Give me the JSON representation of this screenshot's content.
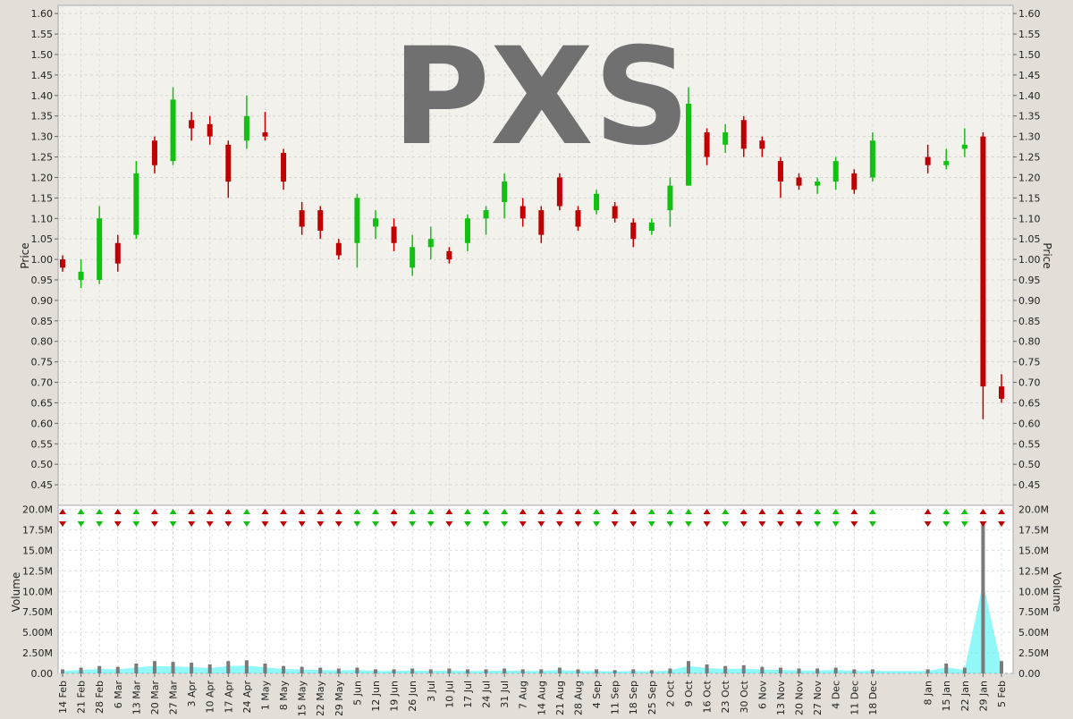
{
  "chart_data": [
    {
      "type": "candlestick",
      "title": "PXS",
      "ylabel": "Price",
      "ylim": [
        0.4,
        1.62
      ],
      "yticks": [
        "0.45",
        "0.50",
        "0.55",
        "0.60",
        "0.65",
        "0.70",
        "0.75",
        "0.80",
        "0.85",
        "0.90",
        "0.95",
        "1.00",
        "1.05",
        "1.10",
        "1.15",
        "1.20",
        "1.25",
        "1.30",
        "1.35",
        "1.40",
        "1.45",
        "1.50",
        "1.55",
        "1.60"
      ],
      "grid": true,
      "colors": {
        "up": "#11c011",
        "down": "#c00000",
        "flat": "#000000"
      },
      "xticks": [
        "14 Feb",
        "21 Feb",
        "28 Feb",
        "6 Mar",
        "13 Mar",
        "20 Mar",
        "27 Mar",
        "3 Apr",
        "10 Apr",
        "17 Apr",
        "24 Apr",
        "1 May",
        "8 May",
        "15 May",
        "22 May",
        "29 May",
        "5 Jun",
        "12 Jun",
        "19 Jun",
        "26 Jun",
        "3 Jul",
        "10 Jul",
        "17 Jul",
        "24 Jul",
        "31 Jul",
        "7 Aug",
        "14 Aug",
        "21 Aug",
        "28 Aug",
        "4 Sep",
        "11 Sep",
        "18 Sep",
        "25 Sep",
        "2 Oct",
        "9 Oct",
        "16 Oct",
        "23 Oct",
        "30 Oct",
        "6 Nov",
        "13 Nov",
        "20 Nov",
        "27 Nov",
        "4 Dec",
        "11 Dec",
        "18 Dec",
        "8 Jan",
        "15 Jan",
        "22 Jan",
        "29 Jan",
        "5 Feb"
      ],
      "series": [
        {
          "x": "14 Feb",
          "open": 1.0,
          "high": 1.01,
          "low": 0.97,
          "close": 0.98
        },
        {
          "x": "21 Feb",
          "open": 0.95,
          "high": 1.0,
          "low": 0.93,
          "close": 0.97
        },
        {
          "x": "28 Feb",
          "open": 0.95,
          "high": 1.13,
          "low": 0.94,
          "close": 1.1
        },
        {
          "x": "6 Mar",
          "open": 1.04,
          "high": 1.06,
          "low": 0.97,
          "close": 0.99
        },
        {
          "x": "13 Mar",
          "open": 1.06,
          "high": 1.24,
          "low": 1.05,
          "close": 1.21
        },
        {
          "x": "20 Mar",
          "open": 1.29,
          "high": 1.3,
          "low": 1.21,
          "close": 1.23
        },
        {
          "x": "27 Mar",
          "open": 1.24,
          "high": 1.42,
          "low": 1.23,
          "close": 1.39
        },
        {
          "x": "3 Apr",
          "open": 1.34,
          "high": 1.36,
          "low": 1.29,
          "close": 1.32
        },
        {
          "x": "10 Apr",
          "open": 1.33,
          "high": 1.35,
          "low": 1.28,
          "close": 1.3
        },
        {
          "x": "17 Apr",
          "open": 1.28,
          "high": 1.29,
          "low": 1.15,
          "close": 1.19
        },
        {
          "x": "24 Apr",
          "open": 1.29,
          "high": 1.4,
          "low": 1.27,
          "close": 1.35
        },
        {
          "x": "1 May",
          "open": 1.31,
          "high": 1.36,
          "low": 1.29,
          "close": 1.3
        },
        {
          "x": "8 May",
          "open": 1.26,
          "high": 1.27,
          "low": 1.17,
          "close": 1.19
        },
        {
          "x": "15 May",
          "open": 1.12,
          "high": 1.14,
          "low": 1.06,
          "close": 1.08
        },
        {
          "x": "22 May",
          "open": 1.12,
          "high": 1.13,
          "low": 1.05,
          "close": 1.07
        },
        {
          "x": "29 May",
          "open": 1.04,
          "high": 1.05,
          "low": 1.0,
          "close": 1.01
        },
        {
          "x": "5 Jun",
          "open": 1.04,
          "high": 1.16,
          "low": 0.98,
          "close": 1.15
        },
        {
          "x": "12 Jun",
          "open": 1.08,
          "high": 1.12,
          "low": 1.05,
          "close": 1.1
        },
        {
          "x": "19 Jun",
          "open": 1.08,
          "high": 1.1,
          "low": 1.02,
          "close": 1.04
        },
        {
          "x": "26 Jun",
          "open": 0.98,
          "high": 1.06,
          "low": 0.96,
          "close": 1.03
        },
        {
          "x": "3 Jul",
          "open": 1.03,
          "high": 1.08,
          "low": 1.0,
          "close": 1.05
        },
        {
          "x": "10 Jul",
          "open": 1.02,
          "high": 1.03,
          "low": 0.99,
          "close": 1.0
        },
        {
          "x": "17 Jul",
          "open": 1.04,
          "high": 1.11,
          "low": 1.02,
          "close": 1.1
        },
        {
          "x": "24 Jul",
          "open": 1.1,
          "high": 1.13,
          "low": 1.06,
          "close": 1.12
        },
        {
          "x": "31 Jul",
          "open": 1.14,
          "high": 1.21,
          "low": 1.1,
          "close": 1.19
        },
        {
          "x": "7 Aug",
          "open": 1.13,
          "high": 1.15,
          "low": 1.08,
          "close": 1.1
        },
        {
          "x": "14 Aug",
          "open": 1.12,
          "high": 1.13,
          "low": 1.04,
          "close": 1.06
        },
        {
          "x": "21 Aug",
          "open": 1.2,
          "high": 1.21,
          "low": 1.12,
          "close": 1.13
        },
        {
          "x": "28 Aug",
          "open": 1.12,
          "high": 1.13,
          "low": 1.07,
          "close": 1.08
        },
        {
          "x": "4 Sep",
          "open": 1.12,
          "high": 1.17,
          "low": 1.11,
          "close": 1.16
        },
        {
          "x": "11 Sep",
          "open": 1.13,
          "high": 1.14,
          "low": 1.09,
          "close": 1.1
        },
        {
          "x": "18 Sep",
          "open": 1.09,
          "high": 1.1,
          "low": 1.03,
          "close": 1.05
        },
        {
          "x": "25 Sep",
          "open": 1.07,
          "high": 1.1,
          "low": 1.06,
          "close": 1.09
        },
        {
          "x": "2 Oct",
          "open": 1.12,
          "high": 1.2,
          "low": 1.08,
          "close": 1.18
        },
        {
          "x": "9 Oct",
          "open": 1.18,
          "high": 1.42,
          "low": 1.18,
          "close": 1.38
        },
        {
          "x": "16 Oct",
          "open": 1.31,
          "high": 1.32,
          "low": 1.23,
          "close": 1.25
        },
        {
          "x": "23 Oct",
          "open": 1.28,
          "high": 1.33,
          "low": 1.26,
          "close": 1.31
        },
        {
          "x": "30 Oct",
          "open": 1.34,
          "high": 1.35,
          "low": 1.25,
          "close": 1.27
        },
        {
          "x": "6 Nov",
          "open": 1.29,
          "high": 1.3,
          "low": 1.25,
          "close": 1.27
        },
        {
          "x": "13 Nov",
          "open": 1.24,
          "high": 1.25,
          "low": 1.15,
          "close": 1.19
        },
        {
          "x": "20 Nov",
          "open": 1.2,
          "high": 1.21,
          "low": 1.17,
          "close": 1.18
        },
        {
          "x": "27 Nov",
          "open": 1.18,
          "high": 1.2,
          "low": 1.16,
          "close": 1.19
        },
        {
          "x": "4 Dec",
          "open": 1.19,
          "high": 1.25,
          "low": 1.17,
          "close": 1.24
        },
        {
          "x": "11 Dec",
          "open": 1.21,
          "high": 1.22,
          "low": 1.16,
          "close": 1.17
        },
        {
          "x": "18 Dec",
          "open": 1.2,
          "high": 1.31,
          "low": 1.19,
          "close": 1.29
        },
        {
          "x": "8 Jan",
          "open": 1.25,
          "high": 1.28,
          "low": 1.21,
          "close": 1.23
        },
        {
          "x": "15 Jan",
          "open": 1.23,
          "high": 1.27,
          "low": 1.22,
          "close": 1.24
        },
        {
          "x": "22 Jan",
          "open": 1.27,
          "high": 1.32,
          "low": 1.25,
          "close": 1.28
        },
        {
          "x": "29 Jan",
          "open": 1.3,
          "high": 1.31,
          "low": 0.61,
          "close": 0.69
        },
        {
          "x": "5 Feb",
          "open": 0.69,
          "high": 0.72,
          "low": 0.65,
          "close": 0.66
        }
      ]
    },
    {
      "type": "bar",
      "ylabel": "Volume",
      "ylim": [
        0,
        20500000
      ],
      "yticks": [
        "0.00",
        "2.50M",
        "5.00M",
        "7.50M",
        "10.0M",
        "12.5M",
        "15.0M",
        "17.5M",
        "20.0M"
      ],
      "colors": {
        "volume_bar": "#7a7a7a",
        "average_band": "#38f0f0",
        "average_band_2": "#f0a8a8"
      },
      "grid": true,
      "series": [
        {
          "x": "14 Feb",
          "value": 500000
        },
        {
          "x": "21 Feb",
          "value": 700000
        },
        {
          "x": "28 Feb",
          "value": 900000
        },
        {
          "x": "6 Mar",
          "value": 800000
        },
        {
          "x": "13 Mar",
          "value": 1200000
        },
        {
          "x": "20 Mar",
          "value": 1500000
        },
        {
          "x": "27 Mar",
          "value": 1400000
        },
        {
          "x": "3 Apr",
          "value": 1300000
        },
        {
          "x": "10 Apr",
          "value": 1100000
        },
        {
          "x": "17 Apr",
          "value": 1500000
        },
        {
          "x": "24 Apr",
          "value": 1600000
        },
        {
          "x": "1 May",
          "value": 1200000
        },
        {
          "x": "8 May",
          "value": 900000
        },
        {
          "x": "15 May",
          "value": 800000
        },
        {
          "x": "22 May",
          "value": 700000
        },
        {
          "x": "29 May",
          "value": 600000
        },
        {
          "x": "5 Jun",
          "value": 700000
        },
        {
          "x": "12 Jun",
          "value": 500000
        },
        {
          "x": "19 Jun",
          "value": 500000
        },
        {
          "x": "26 Jun",
          "value": 600000
        },
        {
          "x": "3 Jul",
          "value": 500000
        },
        {
          "x": "10 Jul",
          "value": 600000
        },
        {
          "x": "17 Jul",
          "value": 500000
        },
        {
          "x": "24 Jul",
          "value": 500000
        },
        {
          "x": "31 Jul",
          "value": 600000
        },
        {
          "x": "7 Aug",
          "value": 500000
        },
        {
          "x": "14 Aug",
          "value": 500000
        },
        {
          "x": "21 Aug",
          "value": 700000
        },
        {
          "x": "28 Aug",
          "value": 500000
        },
        {
          "x": "4 Sep",
          "value": 500000
        },
        {
          "x": "11 Sep",
          "value": 400000
        },
        {
          "x": "18 Sep",
          "value": 500000
        },
        {
          "x": "25 Sep",
          "value": 400000
        },
        {
          "x": "2 Oct",
          "value": 600000
        },
        {
          "x": "9 Oct",
          "value": 1500000
        },
        {
          "x": "16 Oct",
          "value": 1100000
        },
        {
          "x": "23 Oct",
          "value": 900000
        },
        {
          "x": "30 Oct",
          "value": 1000000
        },
        {
          "x": "6 Nov",
          "value": 800000
        },
        {
          "x": "13 Nov",
          "value": 700000
        },
        {
          "x": "20 Nov",
          "value": 600000
        },
        {
          "x": "27 Nov",
          "value": 600000
        },
        {
          "x": "4 Dec",
          "value": 700000
        },
        {
          "x": "11 Dec",
          "value": 500000
        },
        {
          "x": "18 Dec",
          "value": 500000
        },
        {
          "x": "8 Jan",
          "value": 500000
        },
        {
          "x": "15 Jan",
          "value": 1200000
        },
        {
          "x": "22 Jan",
          "value": 700000
        },
        {
          "x": "29 Jan",
          "value": 18500000
        },
        {
          "x": "5 Feb",
          "value": 1500000
        }
      ]
    }
  ]
}
